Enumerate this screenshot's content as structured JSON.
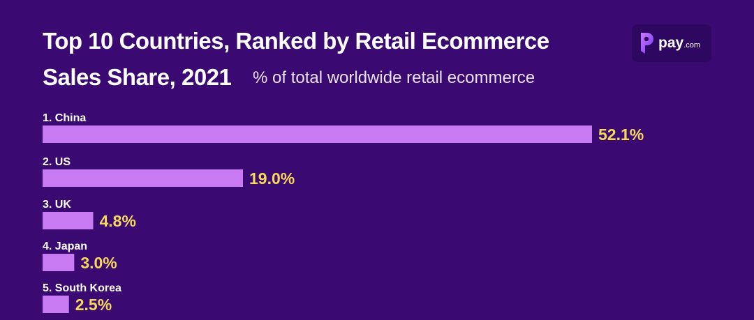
{
  "header": {
    "title_line1": "Top 10 Countries, Ranked by Retail Ecommerce",
    "title_line2": "Sales Share, 2021",
    "subtitle": "% of total worldwide retail ecommerce"
  },
  "logo": {
    "text": "pay",
    "suffix": ".com",
    "icon": "pay-logo-icon"
  },
  "colors": {
    "background": "#3a0a72",
    "bar": "#c87af2",
    "value_label": "#f7d85a",
    "category_label": "#ffffff"
  },
  "chart_data": {
    "type": "bar",
    "orientation": "horizontal",
    "title": "Top 10 Countries, Ranked by Retail Ecommerce Sales Share, 2021",
    "subtitle": "% of total worldwide retail ecommerce",
    "categories": [
      "1. China",
      "2. US",
      "3. UK",
      "4. Japan",
      "5. South Korea"
    ],
    "values": [
      52.1,
      19.0,
      4.8,
      3.0,
      2.5
    ],
    "value_labels": [
      "52.1%",
      "19.0%",
      "4.8%",
      "3.0%",
      "2.5%"
    ],
    "xlabel": "",
    "ylabel": "",
    "xlim": [
      0,
      52.1
    ],
    "grid": false,
    "legend": "none"
  }
}
